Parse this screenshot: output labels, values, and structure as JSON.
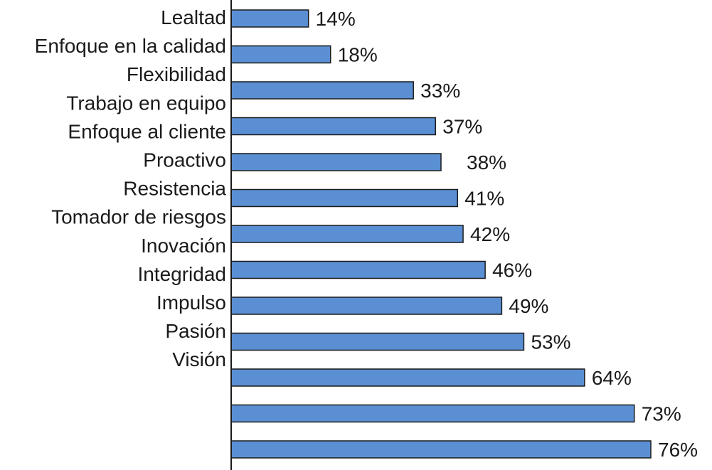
{
  "chart_data": {
    "type": "bar",
    "orientation": "horizontal",
    "title": "",
    "xlabel": "",
    "ylabel": "",
    "categories": [
      "Lealtad",
      "Enfoque en la calidad",
      "Flexibilidad",
      "Trabajo en equipo",
      "Enfoque al cliente",
      "Proactivo",
      "Resistencia",
      "Tomador de riesgos",
      "Inovación",
      "Integridad",
      "Impulso",
      "Pasión",
      "Visión"
    ],
    "values": [
      14,
      18,
      33,
      37,
      38,
      41,
      42,
      46,
      49,
      53,
      64,
      73,
      76
    ],
    "value_labels": [
      "14%",
      "18%",
      "33%",
      "37%",
      "38%",
      "41%",
      "42%",
      "46%",
      "49%",
      "53%",
      "64%",
      "73%",
      "76%"
    ],
    "xlim": [
      0,
      87
    ],
    "grid": false,
    "legend": "none",
    "bar_color": "#5b8fd3",
    "bar_edge_color": "#1a1a1a"
  }
}
